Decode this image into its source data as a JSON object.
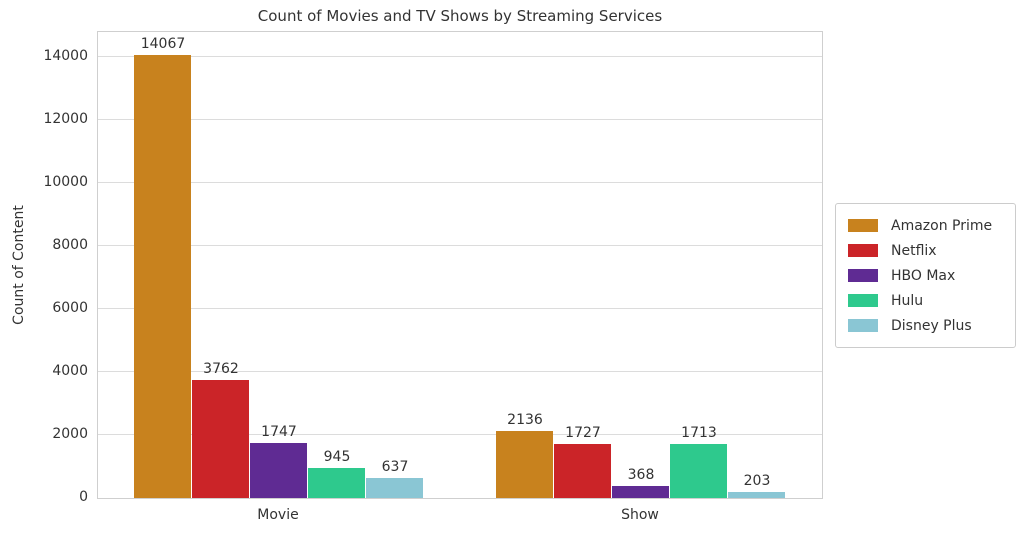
{
  "chart_data": {
    "type": "bar",
    "title": "Count of Movies and TV Shows by Streaming Services",
    "xlabel": "",
    "ylabel": "Count of Content",
    "categories": [
      "Movie",
      "Show"
    ],
    "series": [
      {
        "name": "Amazon Prime",
        "color": "#c8821e",
        "values": [
          14067,
          2136
        ]
      },
      {
        "name": "Netflix",
        "color": "#cb2428",
        "values": [
          3762,
          1727
        ]
      },
      {
        "name": "HBO Max",
        "color": "#5f2b93",
        "values": [
          1747,
          368
        ]
      },
      {
        "name": "Hulu",
        "color": "#2ec98d",
        "values": [
          945,
          1713
        ]
      },
      {
        "name": "Disney Plus",
        "color": "#8ac6d4",
        "values": [
          637,
          203
        ]
      }
    ],
    "yticks": [
      0,
      2000,
      4000,
      6000,
      8000,
      10000,
      12000,
      14000
    ],
    "ylim": [
      0,
      14800
    ],
    "grid": true,
    "legend_position": "right",
    "bar_value_labels": true
  }
}
